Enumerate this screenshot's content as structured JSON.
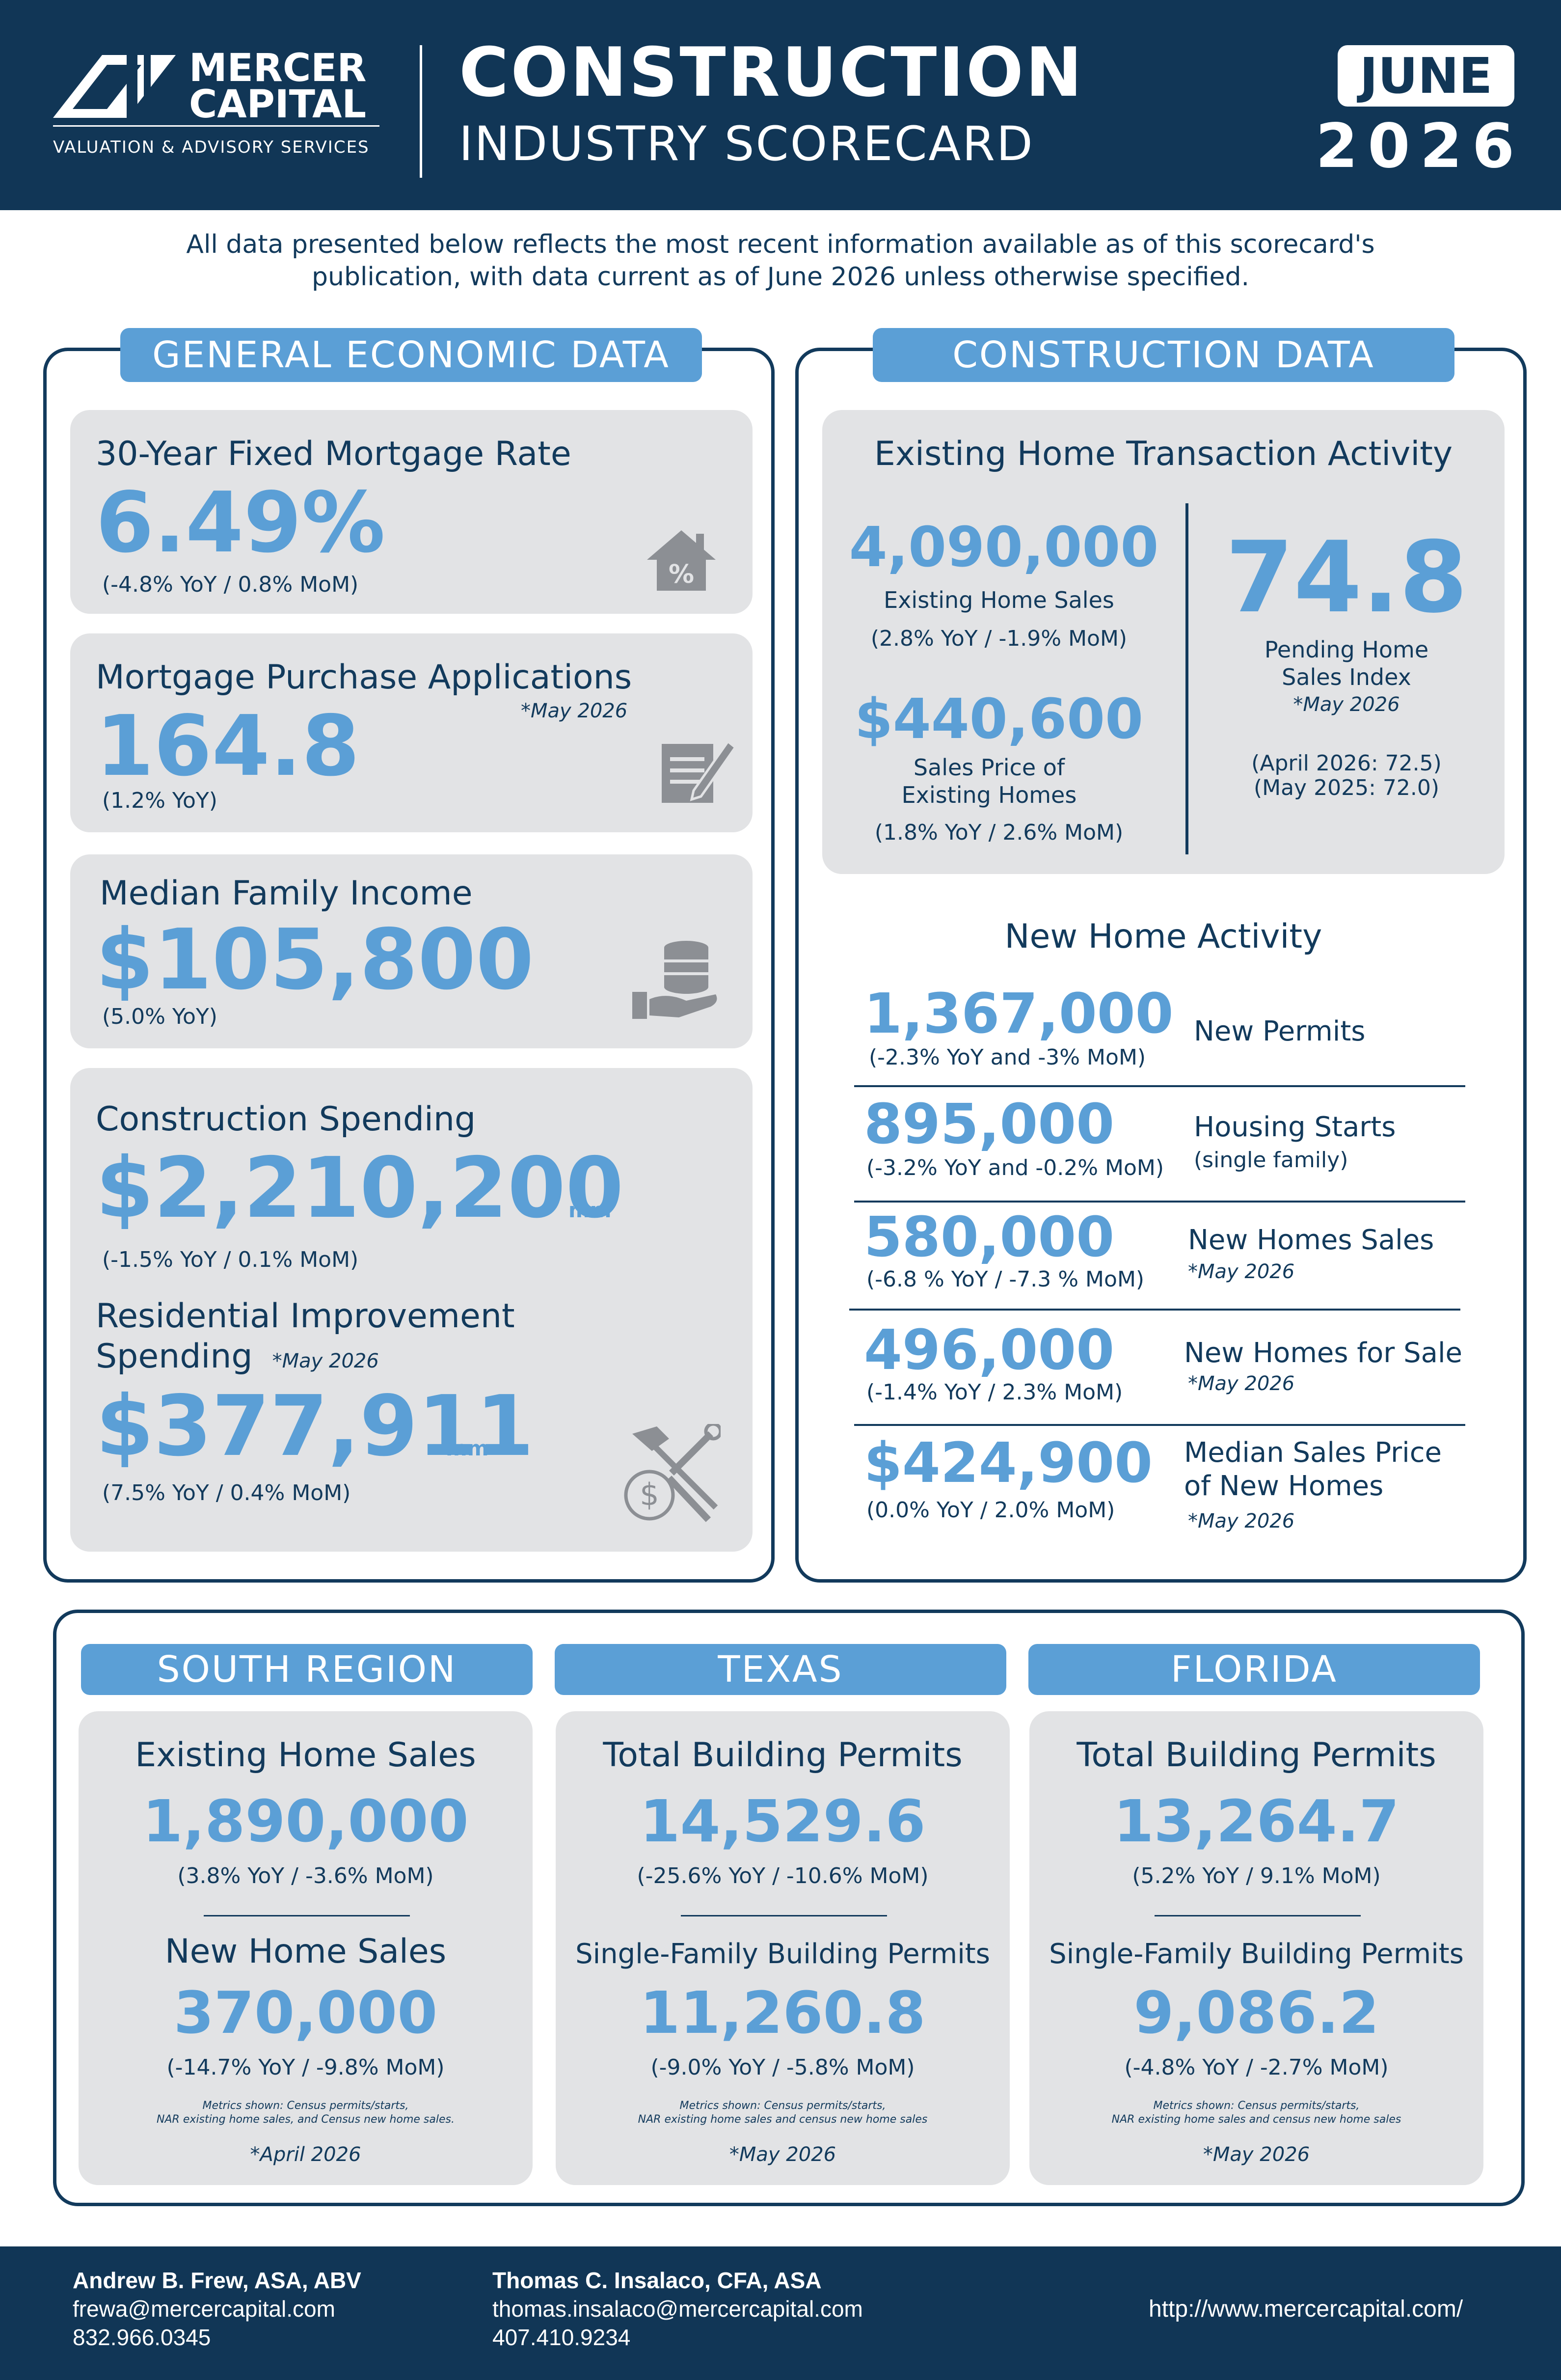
{
  "header": {
    "brand_line1": "MERCER",
    "brand_line2": "CAPITAL",
    "brand_tagline": "VALUATION & ADVISORY SERVICES",
    "title_line1": "CONSTRUCTION",
    "title_line2": "INDUSTRY SCORECARD",
    "month": "JUNE",
    "year": "2026"
  },
  "intro": {
    "line1": "All data presented below reflects the most recent information available as of this scorecard's",
    "line2": "publication, with data current as of June 2026 unless otherwise specified."
  },
  "general": {
    "heading": "GENERAL ECONOMIC DATA",
    "mortgage_rate": {
      "title": "30-Year Fixed Mortgage Rate",
      "value": "6.49%",
      "change": "(-4.8% YoY / 0.8% MoM)",
      "icon": "house-percent-icon"
    },
    "purchase_apps": {
      "title": "Mortgage Purchase Applications",
      "note": "*May 2026",
      "value": "164.8",
      "change": "(1.2% YoY)",
      "icon": "document-pen-icon"
    },
    "income": {
      "title": "Median Family Income",
      "value": "$105,800",
      "change": "(5.0% YoY)",
      "icon": "coins-hand-icon"
    },
    "spending": {
      "title": "Construction Spending",
      "value": "$2,210,200",
      "unit": "mm",
      "change": "(-1.5% YoY / 0.1% MoM)"
    },
    "residential": {
      "title_line1": "Residential Improvement",
      "title_line2": "Spending",
      "note": "*May 2026",
      "value": "$377,911",
      "unit": "mm",
      "change": "(7.5% YoY / 0.4% MoM)",
      "icon": "tools-dollar-icon"
    }
  },
  "construction": {
    "heading": "CONSTRUCTION DATA",
    "existing": {
      "title": "Existing Home Transaction Activity",
      "sales_value": "4,090,000",
      "sales_label": "Existing Home Sales",
      "sales_change": "(2.8% YoY / -1.9% MoM)",
      "price_value": "$440,600",
      "price_label1": "Sales Price of",
      "price_label2": "Existing Homes",
      "price_change": "(1.8% YoY / 2.6% MoM)",
      "pending_value": "74.8",
      "pending_label1": "Pending Home",
      "pending_label2": "Sales Index",
      "pending_note": "*May 2026",
      "pending_prev1": "(April 2026: 72.5)",
      "pending_prev2": "(May 2025: 72.0)"
    },
    "new_home": {
      "title": "New Home Activity",
      "rows": [
        {
          "value": "1,367,000",
          "change": "(-2.3% YoY and -3% MoM)",
          "label": "New Permits",
          "label2": "",
          "sub": ""
        },
        {
          "value": "895,000",
          "change": "(-3.2% YoY and -0.2% MoM)",
          "label": "Housing Starts",
          "label2": "",
          "sub": "(single family)"
        },
        {
          "value": "580,000",
          "change": "(-6.8 % YoY / -7.3 % MoM)",
          "label": "New Homes Sales",
          "label2": "",
          "sub": "*May 2026"
        },
        {
          "value": "496,000",
          "change": "(-1.4% YoY / 2.3% MoM)",
          "label": "New Homes for Sale",
          "label2": "",
          "sub": "*May 2026"
        },
        {
          "value": "$424,900",
          "change": "(0.0% YoY / 2.0% MoM)",
          "label": "Median Sales Price",
          "label2": "of New Homes",
          "sub": "*May 2026"
        }
      ]
    }
  },
  "regions": [
    {
      "heading": "SOUTH REGION",
      "m1_title": "Existing Home Sales",
      "m1_value": "1,890,000",
      "m1_change": "(3.8% YoY / -3.6% MoM)",
      "m2_title": "New Home Sales",
      "m2_value": "370,000",
      "m2_change": "(-14.7% YoY / -9.8% MoM)",
      "fine1": "Metrics shown: Census permits/starts,",
      "fine2": "NAR existing home sales, and Census new home sales.",
      "date": "*April 2026"
    },
    {
      "heading": "TEXAS",
      "m1_title": "Total Building Permits",
      "m1_value": "14,529.6",
      "m1_change": "(-25.6% YoY / -10.6% MoM)",
      "m2_title": "Single-Family Building Permits",
      "m2_value": "11,260.8",
      "m2_change": "(-9.0% YoY / -5.8% MoM)",
      "fine1": "Metrics shown: Census permits/starts,",
      "fine2": "NAR existing home sales and census new home sales",
      "date": "*May 2026"
    },
    {
      "heading": "FLORIDA",
      "m1_title": "Total Building Permits",
      "m1_value": "13,264.7",
      "m1_change": "(5.2% YoY / 9.1% MoM)",
      "m2_title": "Single-Family Building Permits",
      "m2_value": "9,086.2",
      "m2_change": "(-4.8% YoY / -2.7% MoM)",
      "fine1": "Metrics shown: Census permits/starts,",
      "fine2": "NAR existing home sales and census new home sales",
      "date": "*May 2026"
    }
  ],
  "footer": {
    "c1_name": "Andrew B. Frew, ASA, ABV",
    "c1_email": "frewa@mercercapital.com",
    "c1_phone": "832.966.0345",
    "c2_name": "Thomas C. Insalaco, CFA, ASA",
    "c2_email": "thomas.insalaco@mercercapital.com",
    "c2_phone": "407.410.9234",
    "url": "http://www.mercercapital.com/"
  },
  "colors": {
    "navy": "#113656",
    "accent_blue": "#5b9fd6",
    "card_gray": "#e2e3e5"
  }
}
